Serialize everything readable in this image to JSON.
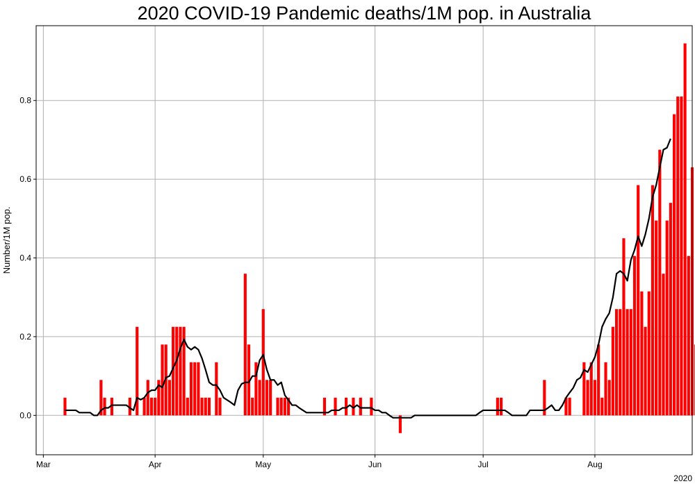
{
  "chart_data": {
    "type": "bar",
    "title": "2020 COVID-19 Pandemic deaths/1M pop. in Australia",
    "xlabel": "",
    "ylabel": "Number/1M pop.",
    "year_label": "2020",
    "x_start_date": "2020-02-28",
    "x_end_date": "2020-08-28",
    "ylim": [
      -0.1,
      0.99
    ],
    "yticks": [
      0.0,
      0.2,
      0.4,
      0.6,
      0.8
    ],
    "xticks": [
      {
        "date": "2020-03-01",
        "label": "Mar"
      },
      {
        "date": "2020-04-01",
        "label": "Apr"
      },
      {
        "date": "2020-05-01",
        "label": "May"
      },
      {
        "date": "2020-06-01",
        "label": "Jun"
      },
      {
        "date": "2020-07-01",
        "label": "Jul"
      },
      {
        "date": "2020-08-01",
        "label": "Aug"
      }
    ],
    "grid": true,
    "bar_color": "#ff0000",
    "line_color": "#000000",
    "series": [
      {
        "kind": "bar",
        "start_date": "2020-03-07",
        "values": [
          0.045,
          0,
          0,
          0,
          0,
          0,
          0,
          0,
          0,
          0,
          0.09,
          0.045,
          0,
          0.045,
          0,
          0,
          0,
          0,
          0.045,
          0,
          0.225,
          0,
          0.045,
          0.09,
          0.045,
          0.045,
          0.09,
          0.18,
          0.18,
          0.09,
          0.225,
          0.225,
          0.225,
          0.225,
          0.045,
          0.135,
          0.135,
          0.135,
          0.045,
          0.045,
          0.045,
          0,
          0.135,
          0.045,
          0,
          0,
          0,
          0,
          0,
          0,
          0.36,
          0.18,
          0.045,
          0.135,
          0.09,
          0.27,
          0.09,
          0.09,
          0,
          0.045,
          0.045,
          0.045,
          0.045,
          0,
          0,
          0,
          0,
          0,
          0,
          0,
          0,
          0,
          0.045,
          0,
          0,
          0.045,
          0,
          0,
          0.045,
          0,
          0.045,
          0,
          0.045,
          0,
          0,
          0.045,
          0,
          0,
          0,
          0,
          0,
          0,
          0,
          -0.045,
          0,
          0,
          0,
          0,
          0,
          0,
          0,
          0,
          0,
          0,
          0,
          0,
          0,
          0,
          0,
          0,
          0,
          0,
          0,
          0,
          0,
          0,
          0,
          0,
          0,
          0,
          0.045,
          0.045,
          0,
          0,
          0,
          0,
          0,
          0,
          0,
          0,
          0,
          0,
          0,
          0.09,
          0,
          0,
          0,
          0,
          0,
          0.045,
          0.045,
          0,
          0,
          0,
          0.135,
          0.09,
          0.135,
          0.09,
          0.18,
          0.045,
          0.135,
          0.09,
          0.225,
          0.27,
          0.27,
          0.45,
          0.27,
          0.27,
          0.405,
          0.585,
          0.315,
          0.225,
          0.315,
          0.585,
          0.495,
          0.675,
          0.36,
          0.495,
          0.54,
          0.765,
          0.81,
          0.81,
          0.945,
          0.405,
          0.63,
          0.18
        ]
      },
      {
        "kind": "line",
        "name": "",
        "start_date": "2020-03-07",
        "values": [
          0.013,
          0.013,
          0.013,
          0.013,
          0.007,
          0.007,
          0.007,
          0.007,
          0,
          0,
          0.013,
          0.019,
          0.019,
          0.026,
          0.026,
          0.026,
          0.026,
          0.026,
          0.019,
          0.013,
          0.045,
          0.04,
          0.045,
          0.058,
          0.064,
          0.064,
          0.077,
          0.071,
          0.096,
          0.1,
          0.12,
          0.14,
          0.17,
          0.193,
          0.174,
          0.167,
          0.174,
          0.167,
          0.145,
          0.116,
          0.084,
          0.077,
          0.077,
          0.064,
          0.045,
          0.039,
          0.033,
          0.026,
          0.064,
          0.08,
          0.084,
          0.084,
          0.1,
          0.1,
          0.14,
          0.154,
          0.116,
          0.09,
          0.09,
          0.077,
          0.084,
          0.051,
          0.039,
          0.026,
          0.026,
          0.019,
          0.013,
          0.007,
          0.007,
          0.007,
          0.007,
          0.007,
          0.007,
          0.007,
          0.013,
          0.013,
          0.013,
          0.019,
          0.019,
          0.026,
          0.019,
          0.026,
          0.019,
          0.019,
          0.019,
          0.019,
          0.013,
          0.013,
          0.007,
          0.007,
          0,
          -0.006,
          -0.006,
          -0.006,
          -0.006,
          -0.006,
          -0.006,
          0,
          0,
          0,
          0,
          0,
          0,
          0,
          0,
          0,
          0,
          0,
          0,
          0,
          0,
          0,
          0,
          0,
          0,
          0.007,
          0.013,
          0.013,
          0.013,
          0.013,
          0.013,
          0.013,
          0.013,
          0.007,
          0,
          0,
          0,
          0,
          0,
          0.013,
          0.013,
          0.013,
          0.013,
          0.013,
          0.019,
          0.026,
          0.013,
          0.013,
          0.026,
          0.045,
          0.058,
          0.07,
          0.09,
          0.096,
          0.116,
          0.11,
          0.129,
          0.148,
          0.18,
          0.225,
          0.245,
          0.26,
          0.3,
          0.36,
          0.367,
          0.36,
          0.342,
          0.395,
          0.42,
          0.455,
          0.43,
          0.46,
          0.5,
          0.555,
          0.585,
          0.63,
          0.675,
          0.68,
          0.703
        ]
      }
    ]
  }
}
